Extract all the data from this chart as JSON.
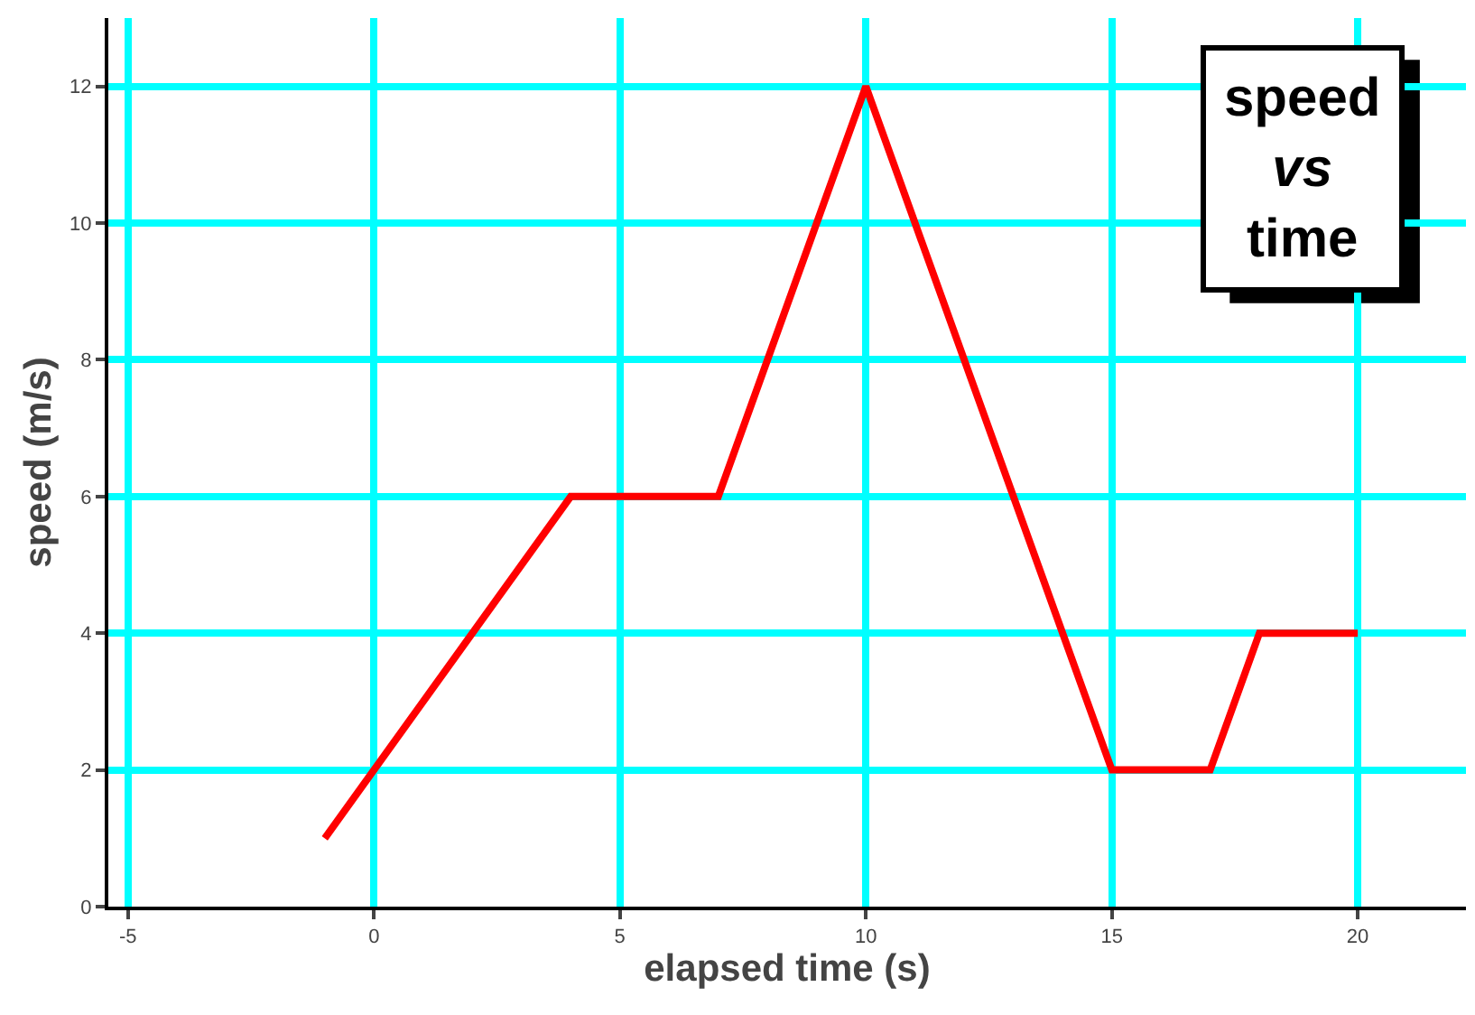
{
  "chart_data": {
    "type": "line",
    "xlabel": "elapsed time (s)",
    "ylabel": "speed (m/s)",
    "annotations": [
      "speed vs time"
    ],
    "x": [
      -1,
      4,
      7,
      10,
      15,
      17,
      18,
      20
    ],
    "series": [
      {
        "color": "#ff0000",
        "values": [
          1,
          6,
          6,
          12,
          2,
          2,
          4,
          4
        ]
      }
    ],
    "xlim": [
      -5.4,
      22.2
    ],
    "xticks": [
      -5,
      0,
      5,
      10,
      15,
      20
    ],
    "ylim": [
      0,
      13
    ],
    "yticks": [
      0,
      2,
      4,
      6,
      8,
      10,
      12
    ],
    "grid": true,
    "marker": "none",
    "line_style": "solid"
  }
}
